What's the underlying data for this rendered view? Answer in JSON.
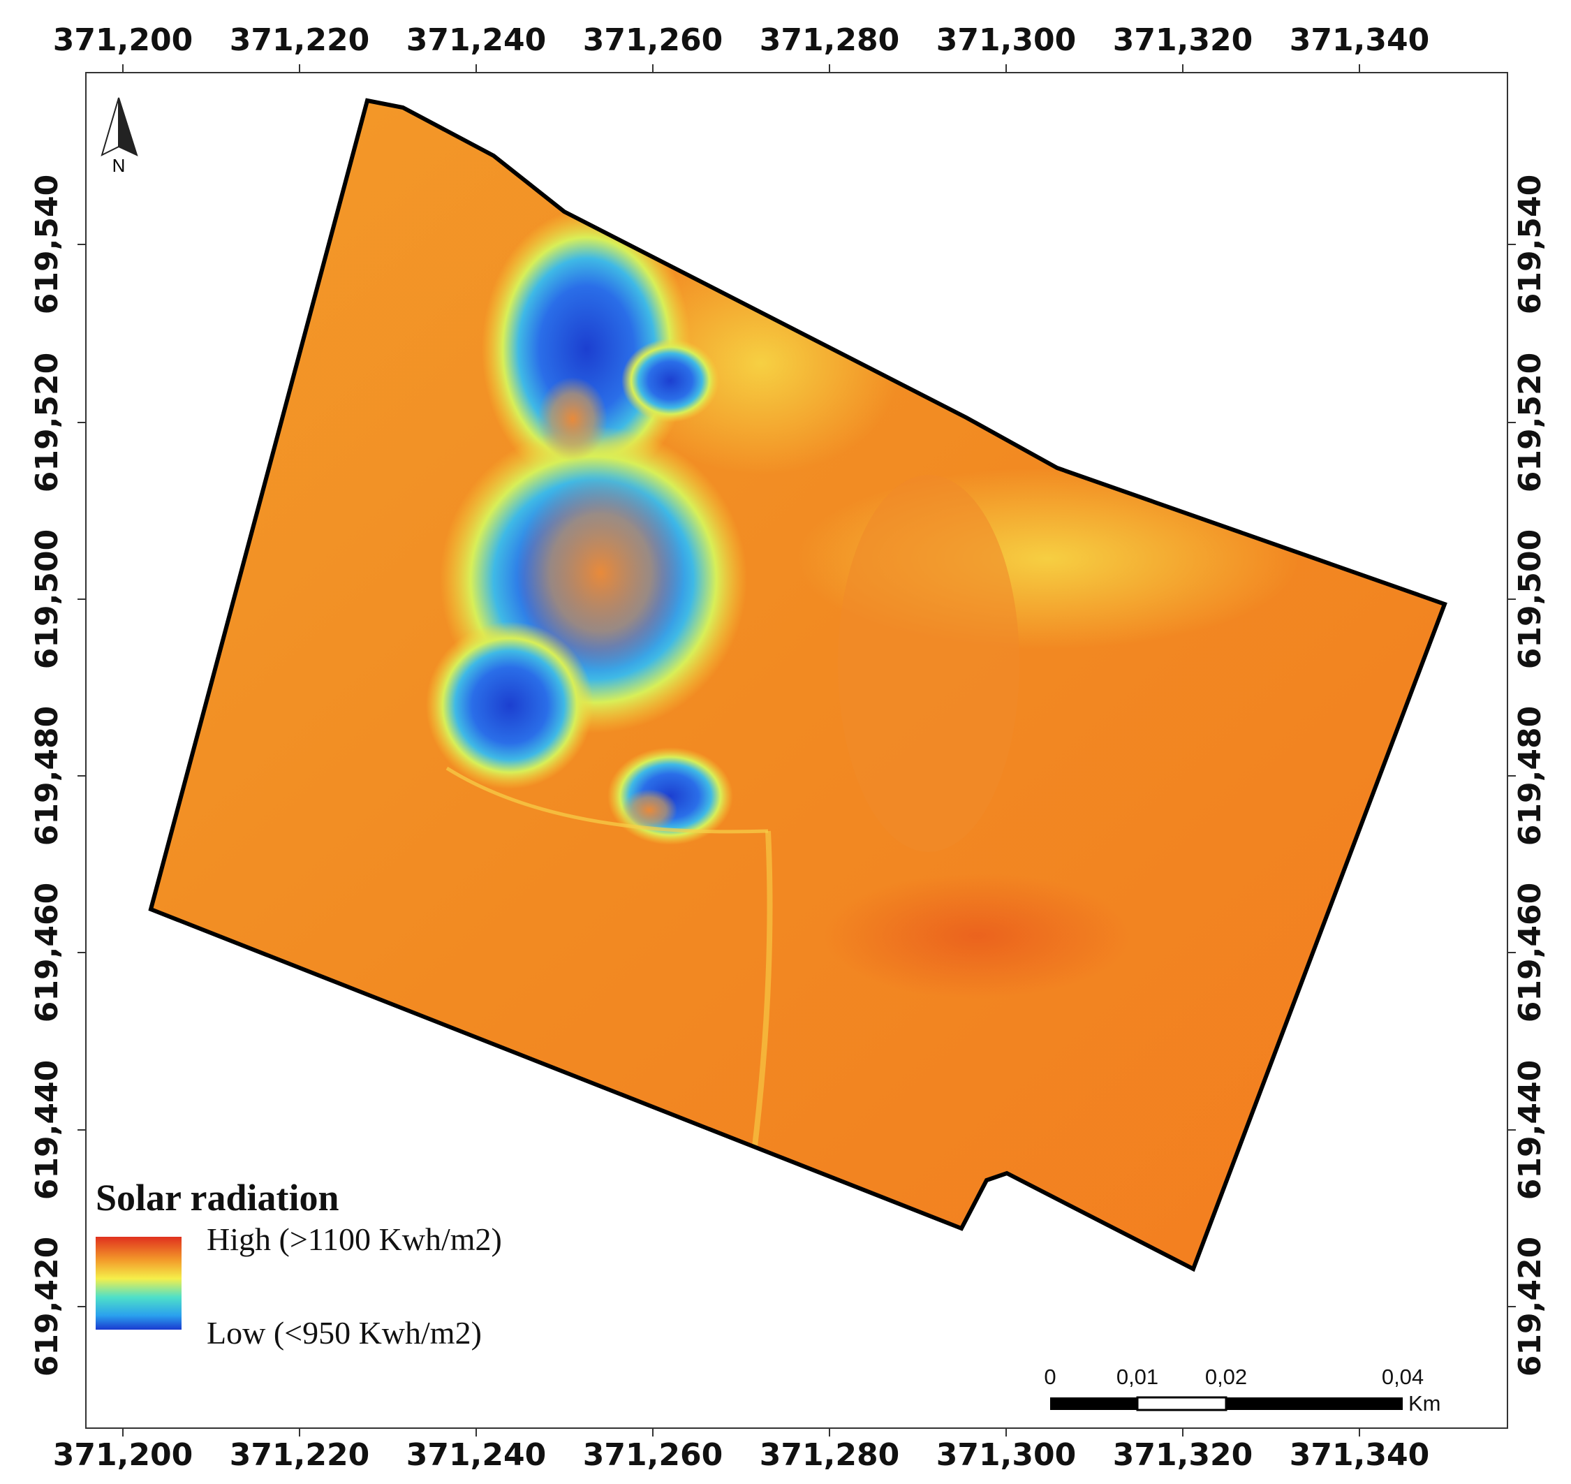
{
  "map": {
    "x_ticks": [
      "371,200",
      "371,220",
      "371,240",
      "371,260",
      "371,280",
      "371,300",
      "371,320",
      "371,340"
    ],
    "y_ticks": [
      "619,540",
      "619,520",
      "619,500",
      "619,480",
      "619,460",
      "619,440",
      "619,420"
    ],
    "north_label": "N"
  },
  "legend": {
    "title": "Solar radiation",
    "high": "High (>1100 Kwh/m2)",
    "low": "Low (<950 Kwh/m2)"
  },
  "scale_bar": {
    "labels": [
      "0",
      "0,01",
      "0,02",
      "0,04"
    ],
    "unit": "Km"
  }
}
